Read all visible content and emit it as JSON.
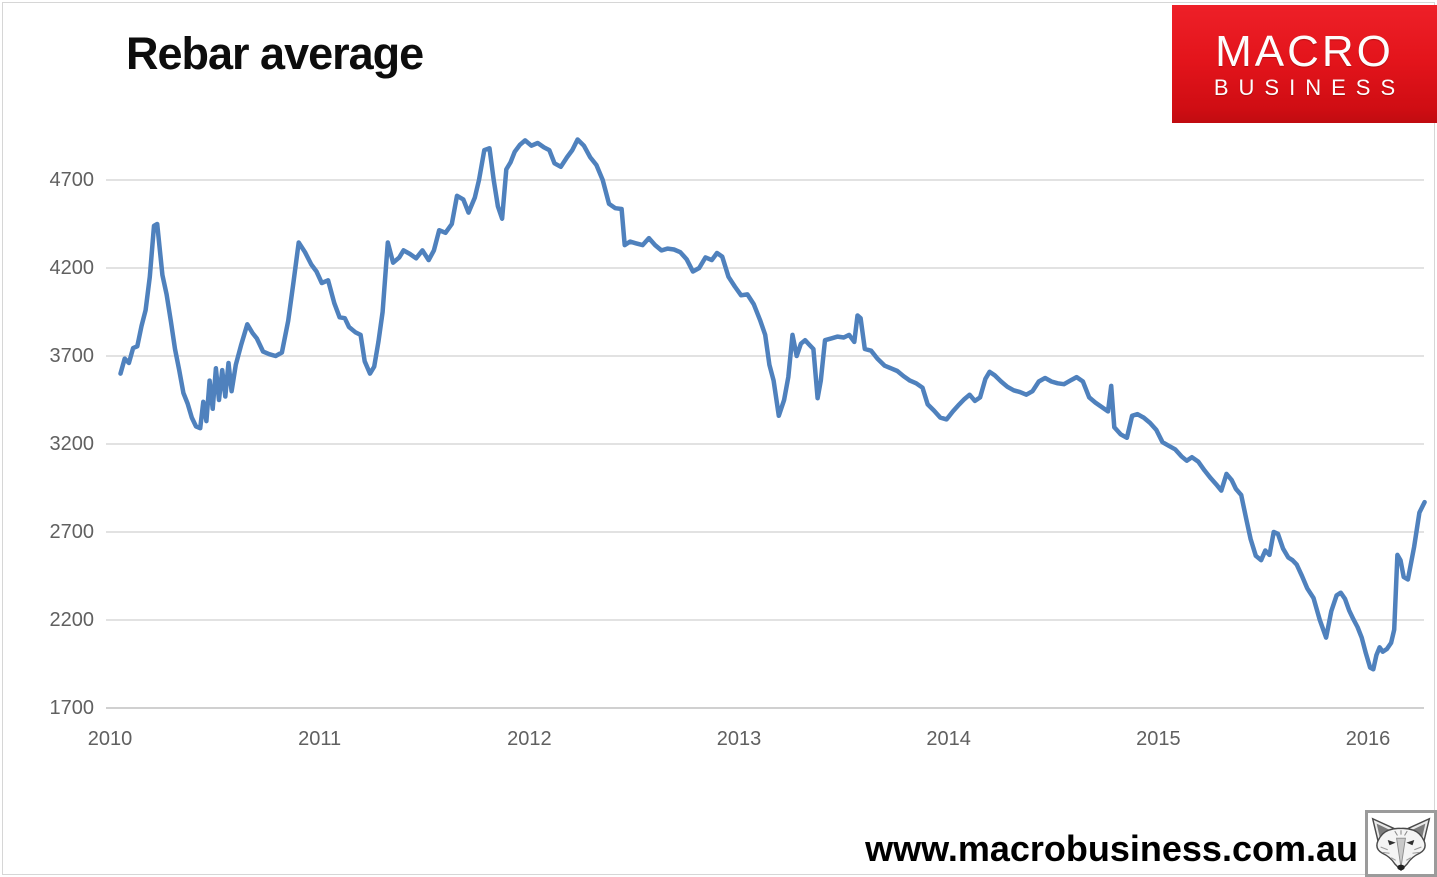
{
  "page": {
    "title": "Rebar average"
  },
  "logo": {
    "line1": "MACRO",
    "line2": "BUSINESS",
    "background_red": "#e01319",
    "text_color": "#ffffff"
  },
  "footer": {
    "url": "www.macrobusiness.com.au"
  },
  "fox": {
    "icon": "fox-sketch-logo"
  },
  "chart_data": {
    "type": "line",
    "title": "Rebar average",
    "xlabel": "",
    "ylabel": "",
    "x_ticks": [
      2010,
      2011,
      2012,
      2013,
      2014,
      2015,
      2016
    ],
    "y_ticks": [
      1700,
      2200,
      2700,
      3200,
      3700,
      4200,
      4700
    ],
    "xlim": [
      2010,
      2016.32
    ],
    "ylim": [
      1700,
      5000
    ],
    "grid": true,
    "legend": "none",
    "line_color": "#4F81BD",
    "grid_color": "#d9d9d9",
    "axis_line_color": "#d0d0d0",
    "tick_label_color": "#606060",
    "series": [
      {
        "name": "Rebar average",
        "points": [
          [
            2010.05,
            3600
          ],
          [
            2010.07,
            3685
          ],
          [
            2010.09,
            3660
          ],
          [
            2010.11,
            3745
          ],
          [
            2010.13,
            3755
          ],
          [
            2010.15,
            3870
          ],
          [
            2010.17,
            3960
          ],
          [
            2010.19,
            4150
          ],
          [
            2010.21,
            4440
          ],
          [
            2010.225,
            4450
          ],
          [
            2010.25,
            4160
          ],
          [
            2010.27,
            4050
          ],
          [
            2010.29,
            3900
          ],
          [
            2010.31,
            3740
          ],
          [
            2010.33,
            3620
          ],
          [
            2010.35,
            3490
          ],
          [
            2010.37,
            3430
          ],
          [
            2010.39,
            3350
          ],
          [
            2010.41,
            3300
          ],
          [
            2010.43,
            3290
          ],
          [
            2010.445,
            3440
          ],
          [
            2010.46,
            3330
          ],
          [
            2010.475,
            3560
          ],
          [
            2010.49,
            3400
          ],
          [
            2010.505,
            3630
          ],
          [
            2010.52,
            3450
          ],
          [
            2010.535,
            3620
          ],
          [
            2010.55,
            3470
          ],
          [
            2010.565,
            3660
          ],
          [
            2010.58,
            3500
          ],
          [
            2010.6,
            3650
          ],
          [
            2010.625,
            3760
          ],
          [
            2010.655,
            3880
          ],
          [
            2010.68,
            3830
          ],
          [
            2010.7,
            3800
          ],
          [
            2010.73,
            3725
          ],
          [
            2010.76,
            3710
          ],
          [
            2010.79,
            3700
          ],
          [
            2010.82,
            3720
          ],
          [
            2010.85,
            3900
          ],
          [
            2010.875,
            4120
          ],
          [
            2010.9,
            4345
          ],
          [
            2010.93,
            4290
          ],
          [
            2010.96,
            4220
          ],
          [
            2010.985,
            4180
          ],
          [
            2011.01,
            4115
          ],
          [
            2011.04,
            4130
          ],
          [
            2011.07,
            4000
          ],
          [
            2011.095,
            3920
          ],
          [
            2011.12,
            3915
          ],
          [
            2011.14,
            3865
          ],
          [
            2011.17,
            3835
          ],
          [
            2011.195,
            3820
          ],
          [
            2011.215,
            3670
          ],
          [
            2011.24,
            3600
          ],
          [
            2011.26,
            3640
          ],
          [
            2011.28,
            3780
          ],
          [
            2011.3,
            3950
          ],
          [
            2011.325,
            4345
          ],
          [
            2011.35,
            4230
          ],
          [
            2011.38,
            4260
          ],
          [
            2011.4,
            4300
          ],
          [
            2011.43,
            4280
          ],
          [
            2011.46,
            4255
          ],
          [
            2011.49,
            4300
          ],
          [
            2011.52,
            4245
          ],
          [
            2011.545,
            4300
          ],
          [
            2011.57,
            4415
          ],
          [
            2011.6,
            4400
          ],
          [
            2011.63,
            4450
          ],
          [
            2011.655,
            4610
          ],
          [
            2011.685,
            4590
          ],
          [
            2011.71,
            4515
          ],
          [
            2011.74,
            4600
          ],
          [
            2011.76,
            4700
          ],
          [
            2011.785,
            4870
          ],
          [
            2011.81,
            4880
          ],
          [
            2011.83,
            4700
          ],
          [
            2011.85,
            4550
          ],
          [
            2011.87,
            4480
          ],
          [
            2011.89,
            4760
          ],
          [
            2011.91,
            4800
          ],
          [
            2011.93,
            4860
          ],
          [
            2011.955,
            4900
          ],
          [
            2011.98,
            4925
          ],
          [
            2012.01,
            4895
          ],
          [
            2012.04,
            4910
          ],
          [
            2012.07,
            4885
          ],
          [
            2012.095,
            4870
          ],
          [
            2012.12,
            4795
          ],
          [
            2012.15,
            4775
          ],
          [
            2012.18,
            4830
          ],
          [
            2012.205,
            4870
          ],
          [
            2012.23,
            4930
          ],
          [
            2012.26,
            4895
          ],
          [
            2012.29,
            4830
          ],
          [
            2012.32,
            4785
          ],
          [
            2012.35,
            4700
          ],
          [
            2012.38,
            4565
          ],
          [
            2012.41,
            4540
          ],
          [
            2012.44,
            4535
          ],
          [
            2012.455,
            4330
          ],
          [
            2012.48,
            4350
          ],
          [
            2012.51,
            4340
          ],
          [
            2012.54,
            4330
          ],
          [
            2012.57,
            4370
          ],
          [
            2012.6,
            4330
          ],
          [
            2012.63,
            4300
          ],
          [
            2012.66,
            4310
          ],
          [
            2012.69,
            4305
          ],
          [
            2012.72,
            4290
          ],
          [
            2012.75,
            4250
          ],
          [
            2012.78,
            4180
          ],
          [
            2012.81,
            4200
          ],
          [
            2012.84,
            4260
          ],
          [
            2012.87,
            4245
          ],
          [
            2012.895,
            4285
          ],
          [
            2012.92,
            4265
          ],
          [
            2012.95,
            4150
          ],
          [
            2012.98,
            4095
          ],
          [
            2013.01,
            4045
          ],
          [
            2013.04,
            4050
          ],
          [
            2013.07,
            3995
          ],
          [
            2013.1,
            3905
          ],
          [
            2013.125,
            3820
          ],
          [
            2013.145,
            3650
          ],
          [
            2013.165,
            3560
          ],
          [
            2013.19,
            3360
          ],
          [
            2013.215,
            3450
          ],
          [
            2013.235,
            3580
          ],
          [
            2013.255,
            3820
          ],
          [
            2013.275,
            3700
          ],
          [
            2013.295,
            3770
          ],
          [
            2013.315,
            3790
          ],
          [
            2013.335,
            3765
          ],
          [
            2013.355,
            3740
          ],
          [
            2013.375,
            3460
          ],
          [
            2013.39,
            3560
          ],
          [
            2013.41,
            3790
          ],
          [
            2013.44,
            3800
          ],
          [
            2013.47,
            3810
          ],
          [
            2013.5,
            3805
          ],
          [
            2013.525,
            3820
          ],
          [
            2013.55,
            3780
          ],
          [
            2013.565,
            3930
          ],
          [
            2013.58,
            3915
          ],
          [
            2013.6,
            3740
          ],
          [
            2013.63,
            3730
          ],
          [
            2013.66,
            3685
          ],
          [
            2013.695,
            3645
          ],
          [
            2013.725,
            3630
          ],
          [
            2013.755,
            3615
          ],
          [
            2013.785,
            3585
          ],
          [
            2013.815,
            3560
          ],
          [
            2013.845,
            3545
          ],
          [
            2013.875,
            3520
          ],
          [
            2013.9,
            3425
          ],
          [
            2013.93,
            3390
          ],
          [
            2013.96,
            3350
          ],
          [
            2013.99,
            3340
          ],
          [
            2014.02,
            3385
          ],
          [
            2014.05,
            3425
          ],
          [
            2014.075,
            3455
          ],
          [
            2014.1,
            3480
          ],
          [
            2014.125,
            3445
          ],
          [
            2014.15,
            3465
          ],
          [
            2014.175,
            3570
          ],
          [
            2014.195,
            3610
          ],
          [
            2014.22,
            3590
          ],
          [
            2014.25,
            3555
          ],
          [
            2014.28,
            3525
          ],
          [
            2014.31,
            3505
          ],
          [
            2014.34,
            3495
          ],
          [
            2014.37,
            3480
          ],
          [
            2014.4,
            3500
          ],
          [
            2014.43,
            3555
          ],
          [
            2014.46,
            3575
          ],
          [
            2014.49,
            3555
          ],
          [
            2014.52,
            3545
          ],
          [
            2014.55,
            3540
          ],
          [
            2014.58,
            3560
          ],
          [
            2014.61,
            3580
          ],
          [
            2014.64,
            3555
          ],
          [
            2014.67,
            3465
          ],
          [
            2014.7,
            3435
          ],
          [
            2014.73,
            3410
          ],
          [
            2014.76,
            3385
          ],
          [
            2014.775,
            3530
          ],
          [
            2014.79,
            3295
          ],
          [
            2014.82,
            3255
          ],
          [
            2014.85,
            3235
          ],
          [
            2014.875,
            3360
          ],
          [
            2014.9,
            3370
          ],
          [
            2014.93,
            3350
          ],
          [
            2014.96,
            3320
          ],
          [
            2014.99,
            3280
          ],
          [
            2015.02,
            3210
          ],
          [
            2015.05,
            3190
          ],
          [
            2015.08,
            3170
          ],
          [
            2015.11,
            3130
          ],
          [
            2015.135,
            3105
          ],
          [
            2015.16,
            3125
          ],
          [
            2015.19,
            3100
          ],
          [
            2015.22,
            3050
          ],
          [
            2015.25,
            3005
          ],
          [
            2015.28,
            2965
          ],
          [
            2015.3,
            2935
          ],
          [
            2015.325,
            3030
          ],
          [
            2015.35,
            2995
          ],
          [
            2015.37,
            2945
          ],
          [
            2015.395,
            2910
          ],
          [
            2015.42,
            2770
          ],
          [
            2015.44,
            2660
          ],
          [
            2015.465,
            2565
          ],
          [
            2015.49,
            2540
          ],
          [
            2015.51,
            2595
          ],
          [
            2015.53,
            2570
          ],
          [
            2015.55,
            2700
          ],
          [
            2015.57,
            2690
          ],
          [
            2015.595,
            2605
          ],
          [
            2015.62,
            2555
          ],
          [
            2015.64,
            2540
          ],
          [
            2015.66,
            2515
          ],
          [
            2015.685,
            2450
          ],
          [
            2015.71,
            2380
          ],
          [
            2015.74,
            2325
          ],
          [
            2015.77,
            2200
          ],
          [
            2015.8,
            2100
          ],
          [
            2015.825,
            2250
          ],
          [
            2015.85,
            2340
          ],
          [
            2015.87,
            2355
          ],
          [
            2015.89,
            2320
          ],
          [
            2015.91,
            2255
          ],
          [
            2015.93,
            2205
          ],
          [
            2015.95,
            2160
          ],
          [
            2015.97,
            2100
          ],
          [
            2015.99,
            2010
          ],
          [
            2016.01,
            1930
          ],
          [
            2016.025,
            1920
          ],
          [
            2016.04,
            2000
          ],
          [
            2016.055,
            2045
          ],
          [
            2016.07,
            2020
          ],
          [
            2016.09,
            2035
          ],
          [
            2016.11,
            2070
          ],
          [
            2016.125,
            2145
          ],
          [
            2016.14,
            2570
          ],
          [
            2016.155,
            2540
          ],
          [
            2016.17,
            2445
          ],
          [
            2016.19,
            2430
          ],
          [
            2016.22,
            2615
          ],
          [
            2016.245,
            2810
          ],
          [
            2016.27,
            2870
          ]
        ]
      }
    ]
  }
}
